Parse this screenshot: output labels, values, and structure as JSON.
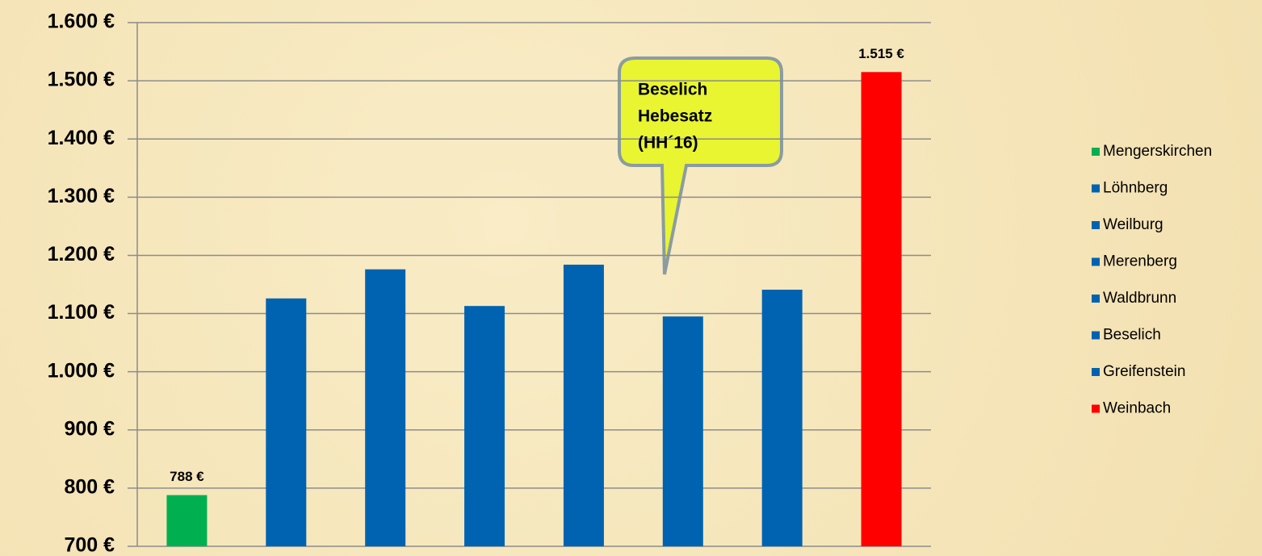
{
  "chart_data": {
    "type": "bar",
    "annotation": [
      "Beselich",
      "Hebesatz",
      "(HH´16)"
    ],
    "series": [
      {
        "name": "Mengerskirchen",
        "color": "#00b050",
        "values": [
          788
        ],
        "value_labels": [
          "788 €"
        ]
      },
      {
        "name": "Löhnberg",
        "color": "#0063b1",
        "values": [
          1126
        ]
      },
      {
        "name": "Weilburg",
        "color": "#0063b1",
        "values": [
          1176
        ]
      },
      {
        "name": "Merenberg",
        "color": "#0063b1",
        "values": [
          1113
        ]
      },
      {
        "name": "Waldbrunn",
        "color": "#0063b1",
        "values": [
          1184
        ]
      },
      {
        "name": "Beselich",
        "color": "#0063b1",
        "values": [
          1095
        ]
      },
      {
        "name": "Greifenstein",
        "color": "#0063b1",
        "values": [
          1141
        ]
      },
      {
        "name": "Weinbach",
        "color": "#ff0000",
        "values": [
          1515
        ],
        "value_labels": [
          "1.515 €"
        ]
      }
    ],
    "ylim": [
      700,
      1600
    ],
    "yticks": [
      {
        "value": 700,
        "label": "700 €"
      },
      {
        "value": 800,
        "label": "800 €"
      },
      {
        "value": 900,
        "label": "900 €"
      },
      {
        "value": 1000,
        "label": "1.000 €"
      },
      {
        "value": 1100,
        "label": "1.100 €"
      },
      {
        "value": 1200,
        "label": "1.200 €"
      },
      {
        "value": 1300,
        "label": "1.300 €"
      },
      {
        "value": 1400,
        "label": "1.400 €"
      },
      {
        "value": 1500,
        "label": "1.500 €"
      },
      {
        "value": 1600,
        "label": "1.600 €"
      }
    ],
    "grid": true,
    "legend": "right"
  }
}
